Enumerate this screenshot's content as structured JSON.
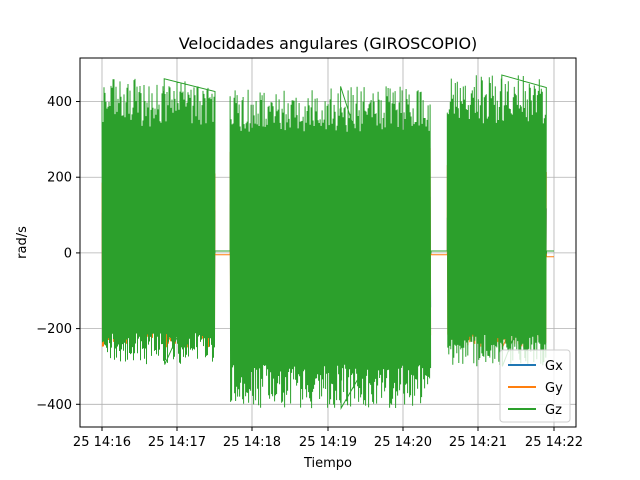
{
  "chart_data": {
    "type": "line",
    "title": "Velocidades angulares (GIROSCOPIO)",
    "xlabel": "Tiempo",
    "ylabel": "rad/s",
    "x_range": [
      "25 14:16",
      "25 14:22"
    ],
    "x_tick_labels": [
      "25 14:16",
      "25 14:17",
      "25 14:18",
      "25 14:19",
      "25 14:20",
      "25 14:21",
      "25 14:22"
    ],
    "ylim": [
      -460,
      515
    ],
    "y_ticks": [
      -400,
      -200,
      0,
      200,
      400
    ],
    "grid": true,
    "legend_position": "lower-right",
    "series": [
      {
        "name": "Gx",
        "color": "#1f77b4",
        "segments": [
          {
            "start": "14:16:00",
            "end": "14:17:30",
            "type": "active",
            "max": 120,
            "min": -120
          },
          {
            "start": "14:17:30",
            "end": "14:17:42",
            "type": "rest",
            "level": 5
          },
          {
            "start": "14:17:42",
            "end": "14:20:22",
            "type": "active",
            "max": 150,
            "min": -150
          },
          {
            "start": "14:20:22",
            "end": "14:20:35",
            "type": "rest",
            "level": 5
          },
          {
            "start": "14:20:35",
            "end": "14:21:54",
            "type": "active",
            "max": 120,
            "min": -120
          },
          {
            "start": "14:21:54",
            "end": "14:22:00",
            "type": "rest",
            "level": 5
          }
        ]
      },
      {
        "name": "Gy",
        "color": "#ff7f0e",
        "segments": [
          {
            "start": "14:16:00",
            "end": "14:17:30",
            "type": "active",
            "max": 250,
            "min": -250
          },
          {
            "start": "14:17:30",
            "end": "14:17:42",
            "type": "rest",
            "level": -5
          },
          {
            "start": "14:17:42",
            "end": "14:20:22",
            "type": "active",
            "max": 285,
            "min": -280
          },
          {
            "start": "14:20:22",
            "end": "14:20:35",
            "type": "rest",
            "level": -5
          },
          {
            "start": "14:20:35",
            "end": "14:21:54",
            "type": "active",
            "max": 285,
            "min": -250
          },
          {
            "start": "14:21:54",
            "end": "14:22:00",
            "type": "rest",
            "level": -10
          }
        ]
      },
      {
        "name": "Gz",
        "color": "#2ca02c",
        "segments": [
          {
            "start": "14:16:00",
            "end": "14:17:30",
            "type": "active",
            "max": 460,
            "min": -295
          },
          {
            "start": "14:17:30",
            "end": "14:17:42",
            "type": "rest",
            "level": 5
          },
          {
            "start": "14:17:42",
            "end": "14:20:22",
            "type": "active",
            "max": 440,
            "min": -410
          },
          {
            "start": "14:20:22",
            "end": "14:20:35",
            "type": "rest",
            "level": 5
          },
          {
            "start": "14:20:35",
            "end": "14:21:54",
            "type": "active",
            "max": 470,
            "min": -300
          },
          {
            "start": "14:21:54",
            "end": "14:22:00",
            "type": "rest",
            "level": 5
          }
        ]
      }
    ]
  }
}
